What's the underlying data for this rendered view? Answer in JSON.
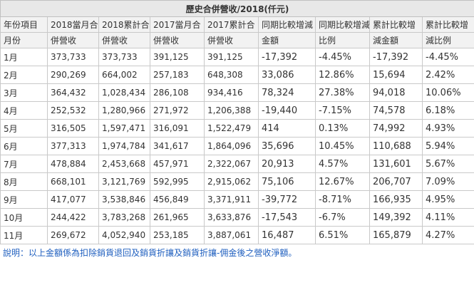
{
  "title": "歷史合併營收/2018(仟元)",
  "headers": {
    "row1": [
      "年份項目",
      "2018當月合",
      "2018累計合",
      "2017當月合",
      "2017累計合",
      "同期比較增減",
      "同期比較增減",
      "累計比較增",
      "累計比較增"
    ],
    "row2": [
      "月份",
      "併營收",
      "併營收",
      "併營收",
      "併營收",
      "金額",
      "比例",
      "減金額",
      "減比例"
    ]
  },
  "rows": [
    {
      "month": "1月",
      "c2018": "373,733",
      "a2018": "373,733",
      "c2017": "391,125",
      "a2017": "391,125",
      "diff": "-17,392",
      "ratio": "-4.45%",
      "adiff": "-17,392",
      "aratio": "-4.45%"
    },
    {
      "month": "2月",
      "c2018": "290,269",
      "a2018": "664,002",
      "c2017": "257,183",
      "a2017": "648,308",
      "diff": "33,086",
      "ratio": "12.86%",
      "adiff": "15,694",
      "aratio": "2.42%"
    },
    {
      "month": "3月",
      "c2018": "364,432",
      "a2018": "1,028,434",
      "c2017": "286,108",
      "a2017": "934,416",
      "diff": "78,324",
      "ratio": "27.38%",
      "adiff": "94,018",
      "aratio": "10.06%"
    },
    {
      "month": "4月",
      "c2018": "252,532",
      "a2018": "1,280,966",
      "c2017": "271,972",
      "a2017": "1,206,388",
      "diff": "-19,440",
      "ratio": "-7.15%",
      "adiff": "74,578",
      "aratio": "6.18%"
    },
    {
      "month": "5月",
      "c2018": "316,505",
      "a2018": "1,597,471",
      "c2017": "316,091",
      "a2017": "1,522,479",
      "diff": "414",
      "ratio": "0.13%",
      "adiff": "74,992",
      "aratio": "4.93%"
    },
    {
      "month": "6月",
      "c2018": "377,313",
      "a2018": "1,974,784",
      "c2017": "341,617",
      "a2017": "1,864,096",
      "diff": "35,696",
      "ratio": "10.45%",
      "adiff": "110,688",
      "aratio": "5.94%"
    },
    {
      "month": "7月",
      "c2018": "478,884",
      "a2018": "2,453,668",
      "c2017": "457,971",
      "a2017": "2,322,067",
      "diff": "20,913",
      "ratio": "4.57%",
      "adiff": "131,601",
      "aratio": "5.67%"
    },
    {
      "month": "8月",
      "c2018": "668,101",
      "a2018": "3,121,769",
      "c2017": "592,995",
      "a2017": "2,915,062",
      "diff": "75,106",
      "ratio": "12.67%",
      "adiff": "206,707",
      "aratio": "7.09%"
    },
    {
      "month": "9月",
      "c2018": "417,077",
      "a2018": "3,538,846",
      "c2017": "456,849",
      "a2017": "3,371,911",
      "diff": "-39,772",
      "ratio": "-8.71%",
      "adiff": "166,935",
      "aratio": "4.95%"
    },
    {
      "month": "10月",
      "c2018": "244,422",
      "a2018": "3,783,268",
      "c2017": "261,965",
      "a2017": "3,633,876",
      "diff": "-17,543",
      "ratio": "-6.7%",
      "adiff": "149,392",
      "aratio": "4.11%"
    },
    {
      "month": "11月",
      "c2018": "269,672",
      "a2018": "4,052,940",
      "c2017": "253,185",
      "a2017": "3,887,061",
      "diff": "16,487",
      "ratio": "6.51%",
      "adiff": "165,879",
      "aratio": "4.27%"
    }
  ],
  "note": "說明：以上金額係為扣除銷貨退回及銷貨折讓及銷貨折讓-佣金後之營收淨額。",
  "colors": {
    "positive": "#1f5fbf",
    "negative": "#e8141f",
    "header_bg": "#f2f2f2",
    "title_bg": "#e8e8e8"
  }
}
